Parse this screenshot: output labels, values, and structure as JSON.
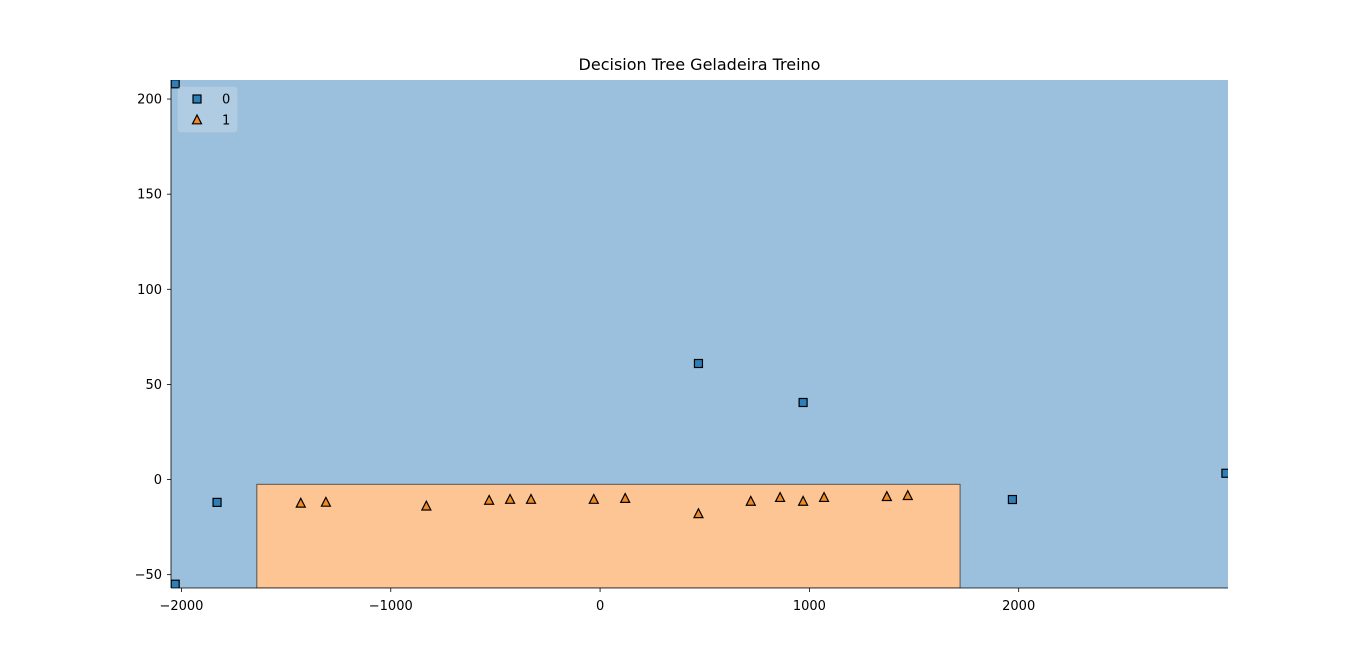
{
  "chart_data": {
    "type": "scatter",
    "title": "Decision Tree Geladeira Treino",
    "xlabel": "",
    "ylabel": "",
    "xlim": [
      -2050,
      3000
    ],
    "ylim": [
      -57,
      210
    ],
    "x_ticks": [
      -2000,
      -1000,
      0,
      1000,
      2000
    ],
    "x_tick_labels": [
      "−2000",
      "−1000",
      "0",
      "1000",
      "2000"
    ],
    "y_ticks": [
      -50,
      0,
      50,
      100,
      150,
      200
    ],
    "y_tick_labels": [
      "−50",
      "0",
      "50",
      "100",
      "150",
      "200"
    ],
    "legend_position": "top-left",
    "colors": {
      "class_0_region": "#9bc0dd",
      "class_1_region": "#fdc593",
      "class_0_marker": "#2c7fb8",
      "class_1_marker": "#f08a24"
    },
    "decision_regions": [
      {
        "class": "0",
        "x_range": [
          -2050,
          3000
        ],
        "y_range": [
          -57,
          210
        ]
      },
      {
        "class": "1",
        "x_range": [
          -1640,
          1720
        ],
        "y_range": [
          -57,
          -2.5
        ]
      }
    ],
    "series": [
      {
        "name": "0",
        "marker": "square",
        "points": [
          [
            -2030,
            208
          ],
          [
            -1830,
            -12
          ],
          [
            470,
            61
          ],
          [
            970,
            40.5
          ],
          [
            1970,
            -10.5
          ],
          [
            2990,
            3.3
          ],
          [
            -2030,
            -55
          ]
        ]
      },
      {
        "name": "1",
        "marker": "triangle",
        "points": [
          [
            -1430,
            -12.5
          ],
          [
            -1310,
            -12
          ],
          [
            -830,
            -14
          ],
          [
            -530,
            -11
          ],
          [
            -430,
            -10.5
          ],
          [
            -330,
            -10.5
          ],
          [
            -30,
            -10.5
          ],
          [
            120,
            -10
          ],
          [
            470,
            -18
          ],
          [
            720,
            -11.5
          ],
          [
            860,
            -9.5
          ],
          [
            970,
            -11.5
          ],
          [
            1070,
            -9.5
          ],
          [
            1370,
            -9
          ],
          [
            1470,
            -8.5
          ]
        ]
      }
    ]
  }
}
